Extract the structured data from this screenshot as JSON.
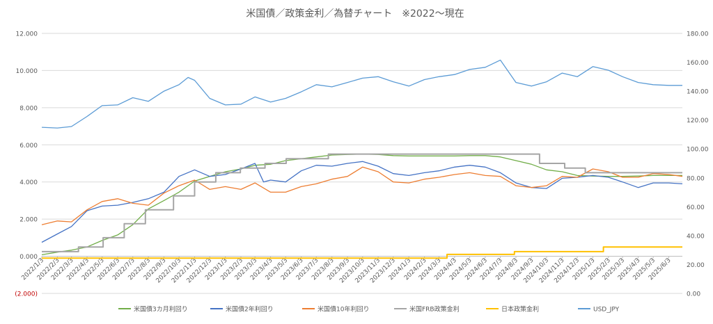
{
  "chart_data": {
    "type": "line",
    "title": "米国債／政策金利／為替チャート　※2022～現在",
    "y_left": {
      "min": -2,
      "max": 12,
      "step": 2,
      "ticks": [
        "(2.000)",
        "0.000",
        "2.000",
        "4.000",
        "6.000",
        "8.000",
        "10.000",
        "12.000"
      ],
      "negative_tick_color": "#c00000"
    },
    "y_right": {
      "min": 0,
      "max": 180,
      "step": 20,
      "ticks": [
        "0.00",
        "20.00",
        "40.00",
        "60.00",
        "80.00",
        "100.00",
        "120.00",
        "140.00",
        "160.00",
        "180.00"
      ]
    },
    "x_ticks": [
      "2022/1/3",
      "2022/2/3",
      "2022/3/3",
      "2022/4/3",
      "2022/5/3",
      "2022/6/3",
      "2022/7/3",
      "2022/8/3",
      "2022/9/3",
      "2022/10/3",
      "2022/11/3",
      "2022/12/3",
      "2023/1/3",
      "2023/2/3",
      "2023/3/3",
      "2023/4/3",
      "2023/5/3",
      "2023/6/3",
      "2023/7/3",
      "2023/8/3",
      "2023/9/3",
      "2023/10/3",
      "2023/11/3",
      "2023/12/3",
      "2024/1/3",
      "2024/2/3",
      "2024/3/3",
      "2024/4/3",
      "2024/5/3",
      "2024/6/3",
      "2024/7/3",
      "2024/8/3",
      "2024/9/3",
      "2024/10/3",
      "2024/11/3",
      "2024/12/3",
      "2025/1/3",
      "2025/2/3",
      "2025/3/3",
      "2025/4/3",
      "2025/5/3",
      "2025/6/3"
    ],
    "x_range": {
      "start": "2022/1/3",
      "end": "2025/6/30"
    },
    "grid": true,
    "legend_position": "bottom",
    "series": [
      {
        "name": "米国債3カ月利回り",
        "axis": "left",
        "color": "#70ad47",
        "step": false,
        "points": [
          [
            "2022/1/3",
            0.08
          ],
          [
            "2022/2/3",
            0.22
          ],
          [
            "2022/3/3",
            0.33
          ],
          [
            "2022/4/3",
            0.5
          ],
          [
            "2022/5/3",
            0.85
          ],
          [
            "2022/6/3",
            1.15
          ],
          [
            "2022/7/3",
            1.7
          ],
          [
            "2022/8/3",
            2.55
          ],
          [
            "2022/9/3",
            3.0
          ],
          [
            "2022/10/3",
            3.45
          ],
          [
            "2022/11/3",
            4.05
          ],
          [
            "2022/12/3",
            4.3
          ],
          [
            "2023/1/3",
            4.55
          ],
          [
            "2023/2/3",
            4.7
          ],
          [
            "2023/3/3",
            4.9
          ],
          [
            "2023/4/3",
            4.95
          ],
          [
            "2023/5/3",
            5.15
          ],
          [
            "2023/6/3",
            5.25
          ],
          [
            "2023/7/3",
            5.35
          ],
          [
            "2023/8/3",
            5.45
          ],
          [
            "2023/9/3",
            5.48
          ],
          [
            "2023/10/3",
            5.5
          ],
          [
            "2023/11/3",
            5.48
          ],
          [
            "2023/12/3",
            5.42
          ],
          [
            "2024/1/3",
            5.4
          ],
          [
            "2024/2/3",
            5.4
          ],
          [
            "2024/3/3",
            5.4
          ],
          [
            "2024/4/3",
            5.4
          ],
          [
            "2024/5/3",
            5.42
          ],
          [
            "2024/6/3",
            5.42
          ],
          [
            "2024/7/3",
            5.35
          ],
          [
            "2024/8/3",
            5.15
          ],
          [
            "2024/9/3",
            4.95
          ],
          [
            "2024/10/3",
            4.65
          ],
          [
            "2024/11/3",
            4.55
          ],
          [
            "2024/12/3",
            4.35
          ],
          [
            "2025/1/3",
            4.32
          ],
          [
            "2025/2/3",
            4.3
          ],
          [
            "2025/3/3",
            4.3
          ],
          [
            "2025/4/3",
            4.32
          ],
          [
            "2025/5/3",
            4.35
          ],
          [
            "2025/6/3",
            4.35
          ],
          [
            "2025/6/30",
            4.35
          ]
        ]
      },
      {
        "name": "米国債2年利回り",
        "axis": "left",
        "color": "#4472c4",
        "step": false,
        "points": [
          [
            "2022/1/3",
            0.75
          ],
          [
            "2022/2/3",
            1.2
          ],
          [
            "2022/3/3",
            1.6
          ],
          [
            "2022/4/3",
            2.45
          ],
          [
            "2022/5/3",
            2.7
          ],
          [
            "2022/6/3",
            2.75
          ],
          [
            "2022/7/3",
            2.9
          ],
          [
            "2022/8/3",
            3.1
          ],
          [
            "2022/9/3",
            3.45
          ],
          [
            "2022/10/3",
            4.3
          ],
          [
            "2022/11/3",
            4.65
          ],
          [
            "2022/12/3",
            4.3
          ],
          [
            "2023/1/3",
            4.4
          ],
          [
            "2023/2/3",
            4.7
          ],
          [
            "2023/3/3",
            5.0
          ],
          [
            "2023/3/20",
            4.0
          ],
          [
            "2023/4/3",
            4.1
          ],
          [
            "2023/5/3",
            4.0
          ],
          [
            "2023/6/3",
            4.6
          ],
          [
            "2023/7/3",
            4.9
          ],
          [
            "2023/8/3",
            4.85
          ],
          [
            "2023/9/3",
            5.0
          ],
          [
            "2023/10/3",
            5.1
          ],
          [
            "2023/11/3",
            4.85
          ],
          [
            "2023/12/3",
            4.45
          ],
          [
            "2024/1/3",
            4.35
          ],
          [
            "2024/2/3",
            4.5
          ],
          [
            "2024/3/3",
            4.6
          ],
          [
            "2024/4/3",
            4.8
          ],
          [
            "2024/5/3",
            4.9
          ],
          [
            "2024/6/3",
            4.8
          ],
          [
            "2024/7/3",
            4.5
          ],
          [
            "2024/8/3",
            3.95
          ],
          [
            "2024/9/3",
            3.7
          ],
          [
            "2024/10/3",
            3.65
          ],
          [
            "2024/11/3",
            4.2
          ],
          [
            "2024/12/3",
            4.25
          ],
          [
            "2025/1/3",
            4.35
          ],
          [
            "2025/2/3",
            4.25
          ],
          [
            "2025/3/3",
            4.0
          ],
          [
            "2025/4/3",
            3.7
          ],
          [
            "2025/5/3",
            3.95
          ],
          [
            "2025/6/3",
            3.95
          ],
          [
            "2025/6/30",
            3.9
          ]
        ]
      },
      {
        "name": "米国債10年利回り",
        "axis": "left",
        "color": "#ed7d31",
        "step": false,
        "points": [
          [
            "2022/1/3",
            1.7
          ],
          [
            "2022/2/3",
            1.9
          ],
          [
            "2022/3/3",
            1.85
          ],
          [
            "2022/4/3",
            2.5
          ],
          [
            "2022/5/3",
            2.95
          ],
          [
            "2022/6/3",
            3.1
          ],
          [
            "2022/7/3",
            2.85
          ],
          [
            "2022/8/3",
            2.75
          ],
          [
            "2022/9/3",
            3.4
          ],
          [
            "2022/10/3",
            3.8
          ],
          [
            "2022/11/3",
            4.1
          ],
          [
            "2022/12/3",
            3.6
          ],
          [
            "2023/1/3",
            3.75
          ],
          [
            "2023/2/3",
            3.6
          ],
          [
            "2023/3/3",
            3.95
          ],
          [
            "2023/4/3",
            3.45
          ],
          [
            "2023/5/3",
            3.45
          ],
          [
            "2023/6/3",
            3.75
          ],
          [
            "2023/7/3",
            3.9
          ],
          [
            "2023/8/3",
            4.15
          ],
          [
            "2023/9/3",
            4.3
          ],
          [
            "2023/10/3",
            4.8
          ],
          [
            "2023/11/3",
            4.55
          ],
          [
            "2023/12/3",
            4.0
          ],
          [
            "2024/1/3",
            3.95
          ],
          [
            "2024/2/3",
            4.15
          ],
          [
            "2024/3/3",
            4.25
          ],
          [
            "2024/4/3",
            4.4
          ],
          [
            "2024/5/3",
            4.5
          ],
          [
            "2024/6/3",
            4.35
          ],
          [
            "2024/7/3",
            4.3
          ],
          [
            "2024/8/3",
            3.8
          ],
          [
            "2024/9/3",
            3.7
          ],
          [
            "2024/10/3",
            3.8
          ],
          [
            "2024/11/3",
            4.3
          ],
          [
            "2024/12/3",
            4.25
          ],
          [
            "2025/1/3",
            4.7
          ],
          [
            "2025/2/3",
            4.55
          ],
          [
            "2025/3/3",
            4.25
          ],
          [
            "2025/4/3",
            4.25
          ],
          [
            "2025/5/3",
            4.45
          ],
          [
            "2025/6/3",
            4.4
          ],
          [
            "2025/6/30",
            4.3
          ]
        ]
      },
      {
        "name": "米国FRB政策金利",
        "axis": "left",
        "color": "#a5a5a5",
        "step": true,
        "points": [
          [
            "2022/1/3",
            0.25
          ],
          [
            "2022/3/17",
            0.5
          ],
          [
            "2022/5/5",
            1.0
          ],
          [
            "2022/6/16",
            1.75
          ],
          [
            "2022/7/28",
            2.5
          ],
          [
            "2022/9/22",
            3.25
          ],
          [
            "2022/11/3",
            4.0
          ],
          [
            "2022/12/15",
            4.5
          ],
          [
            "2023/2/2",
            4.75
          ],
          [
            "2023/3/23",
            5.0
          ],
          [
            "2023/5/4",
            5.25
          ],
          [
            "2023/7/27",
            5.5
          ],
          [
            "2024/9/19",
            5.0
          ],
          [
            "2024/11/8",
            4.75
          ],
          [
            "2024/12/19",
            4.5
          ],
          [
            "2025/6/30",
            4.5
          ]
        ]
      },
      {
        "name": "日本政策金利",
        "axis": "left",
        "color": "#ffc000",
        "step": true,
        "points": [
          [
            "2022/1/3",
            -0.1
          ],
          [
            "2024/3/19",
            0.1
          ],
          [
            "2024/7/31",
            0.25
          ],
          [
            "2025/1/24",
            0.5
          ],
          [
            "2025/6/30",
            0.5
          ]
        ]
      },
      {
        "name": "USD_JPY",
        "axis": "right",
        "color": "#5b9bd5",
        "step": false,
        "points": [
          [
            "2022/1/3",
            115.0
          ],
          [
            "2022/2/3",
            114.5
          ],
          [
            "2022/3/3",
            115.5
          ],
          [
            "2022/4/3",
            122.5
          ],
          [
            "2022/5/3",
            130.0
          ],
          [
            "2022/6/3",
            130.5
          ],
          [
            "2022/7/3",
            135.5
          ],
          [
            "2022/8/3",
            133.0
          ],
          [
            "2022/9/3",
            140.0
          ],
          [
            "2022/10/3",
            144.5
          ],
          [
            "2022/10/21",
            149.5
          ],
          [
            "2022/11/3",
            147.5
          ],
          [
            "2022/12/3",
            135.0
          ],
          [
            "2023/1/3",
            130.5
          ],
          [
            "2023/2/3",
            131.0
          ],
          [
            "2023/3/3",
            136.0
          ],
          [
            "2023/4/3",
            132.5
          ],
          [
            "2023/5/3",
            135.0
          ],
          [
            "2023/6/3",
            139.5
          ],
          [
            "2023/7/3",
            144.5
          ],
          [
            "2023/8/3",
            143.0
          ],
          [
            "2023/9/3",
            146.0
          ],
          [
            "2023/10/3",
            149.0
          ],
          [
            "2023/11/3",
            150.0
          ],
          [
            "2023/12/3",
            146.5
          ],
          [
            "2024/1/3",
            143.5
          ],
          [
            "2024/2/3",
            148.0
          ],
          [
            "2024/3/3",
            150.0
          ],
          [
            "2024/4/3",
            151.5
          ],
          [
            "2024/5/3",
            155.0
          ],
          [
            "2024/6/3",
            156.5
          ],
          [
            "2024/7/3",
            161.5
          ],
          [
            "2024/8/3",
            146.0
          ],
          [
            "2024/9/3",
            143.5
          ],
          [
            "2024/10/3",
            146.5
          ],
          [
            "2024/11/3",
            152.5
          ],
          [
            "2024/12/3",
            150.0
          ],
          [
            "2025/1/3",
            157.0
          ],
          [
            "2025/2/3",
            154.5
          ],
          [
            "2025/3/3",
            150.0
          ],
          [
            "2025/4/3",
            146.0
          ],
          [
            "2025/5/3",
            144.5
          ],
          [
            "2025/6/3",
            144.0
          ],
          [
            "2025/6/30",
            144.0
          ]
        ]
      }
    ]
  }
}
